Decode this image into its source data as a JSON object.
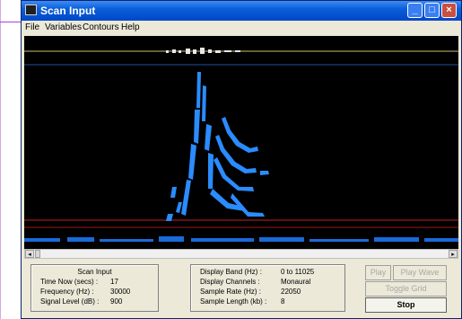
{
  "window": {
    "title": "Scan Input",
    "controls": {
      "minimize": "_",
      "maximize": "□",
      "close": "×"
    }
  },
  "menu": [
    "File",
    "Variables",
    "Contours",
    "Help"
  ],
  "scrollbar": {
    "left_arrow": "◂",
    "right_arrow": "▸"
  },
  "scan_panel": {
    "title": "Scan Input",
    "rows": [
      {
        "label": "Time Now (secs) :",
        "value": "17"
      },
      {
        "label": "Frequency (Hz) :",
        "value": "30000"
      },
      {
        "label": "Signal Level (dB) :",
        "value": "900"
      }
    ]
  },
  "display_panel": {
    "rows": [
      {
        "label": "Display Band (Hz) :",
        "value": "0 to 11025"
      },
      {
        "label": "Display Channels :",
        "value": "Monaural"
      },
      {
        "label": "Sample Rate (Hz) :",
        "value": "22050"
      },
      {
        "label": "Sample Length (kb) :",
        "value": "8"
      }
    ]
  },
  "buttons": {
    "play": "Play",
    "play_wave": "Play Wave",
    "toggle_grid": "Toggle Grid",
    "stop": "Stop"
  },
  "colors": {
    "display_bg": "#000000",
    "spectrogram": "#2a8cff",
    "guide_red": "#c02020",
    "guide_yellow": "#c8c070",
    "guide_blue": "#2050a0"
  }
}
